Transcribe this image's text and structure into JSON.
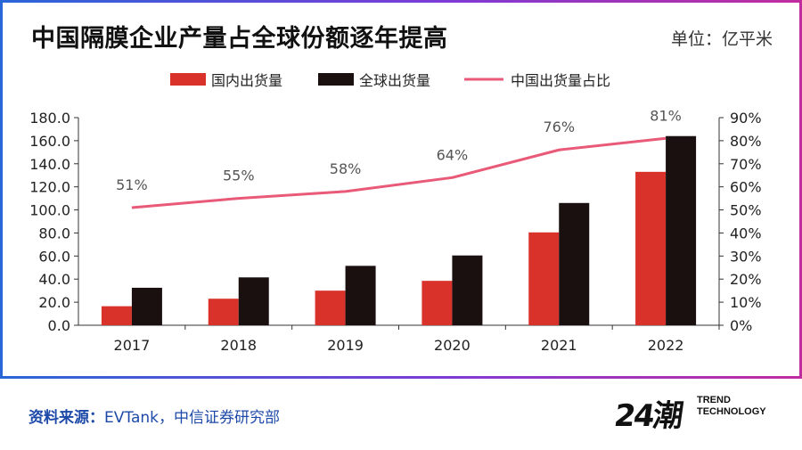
{
  "header": {
    "title": "中国隔膜企业产量占全球份额逐年提高",
    "unit": "单位：亿平米"
  },
  "footer": {
    "source_label": "资料来源：",
    "source_text": "EVTank，中信证券研究部",
    "logo_mark": "24潮",
    "logo_text_1": "TREND",
    "logo_text_2": "TECHNOLOGY"
  },
  "colors": {
    "domestic": "#d8322a",
    "global": "#1a1010",
    "share": "#e85a78"
  },
  "chart_data": {
    "type": "bar",
    "categories": [
      "2017",
      "2018",
      "2019",
      "2020",
      "2021",
      "2022"
    ],
    "series": [
      {
        "name": "国内出货量",
        "type": "bar",
        "axis": "left",
        "values": [
          16.5,
          23.0,
          30.0,
          38.5,
          80.5,
          133.0
        ]
      },
      {
        "name": "全球出货量",
        "type": "bar",
        "axis": "left",
        "values": [
          32.5,
          41.5,
          51.5,
          60.5,
          106.0,
          164.0
        ]
      },
      {
        "name": "中国出货量占比",
        "type": "line",
        "axis": "right",
        "values": [
          51,
          55,
          58,
          64,
          76,
          81
        ],
        "labels": [
          "51%",
          "55%",
          "58%",
          "64%",
          "76%",
          "81%"
        ]
      }
    ],
    "y_left": {
      "min": 0,
      "max": 180,
      "ticks": [
        "0.0",
        "20.0",
        "40.0",
        "60.0",
        "80.0",
        "100.0",
        "120.0",
        "140.0",
        "160.0",
        "180.0"
      ]
    },
    "y_right": {
      "min": 0,
      "max": 90,
      "ticks": [
        "0%",
        "10%",
        "20%",
        "30%",
        "40%",
        "50%",
        "60%",
        "70%",
        "80%",
        "90%"
      ]
    },
    "legend": [
      "国内出货量",
      "全球出货量",
      "中国出货量占比"
    ],
    "legend_position": "top-center"
  }
}
